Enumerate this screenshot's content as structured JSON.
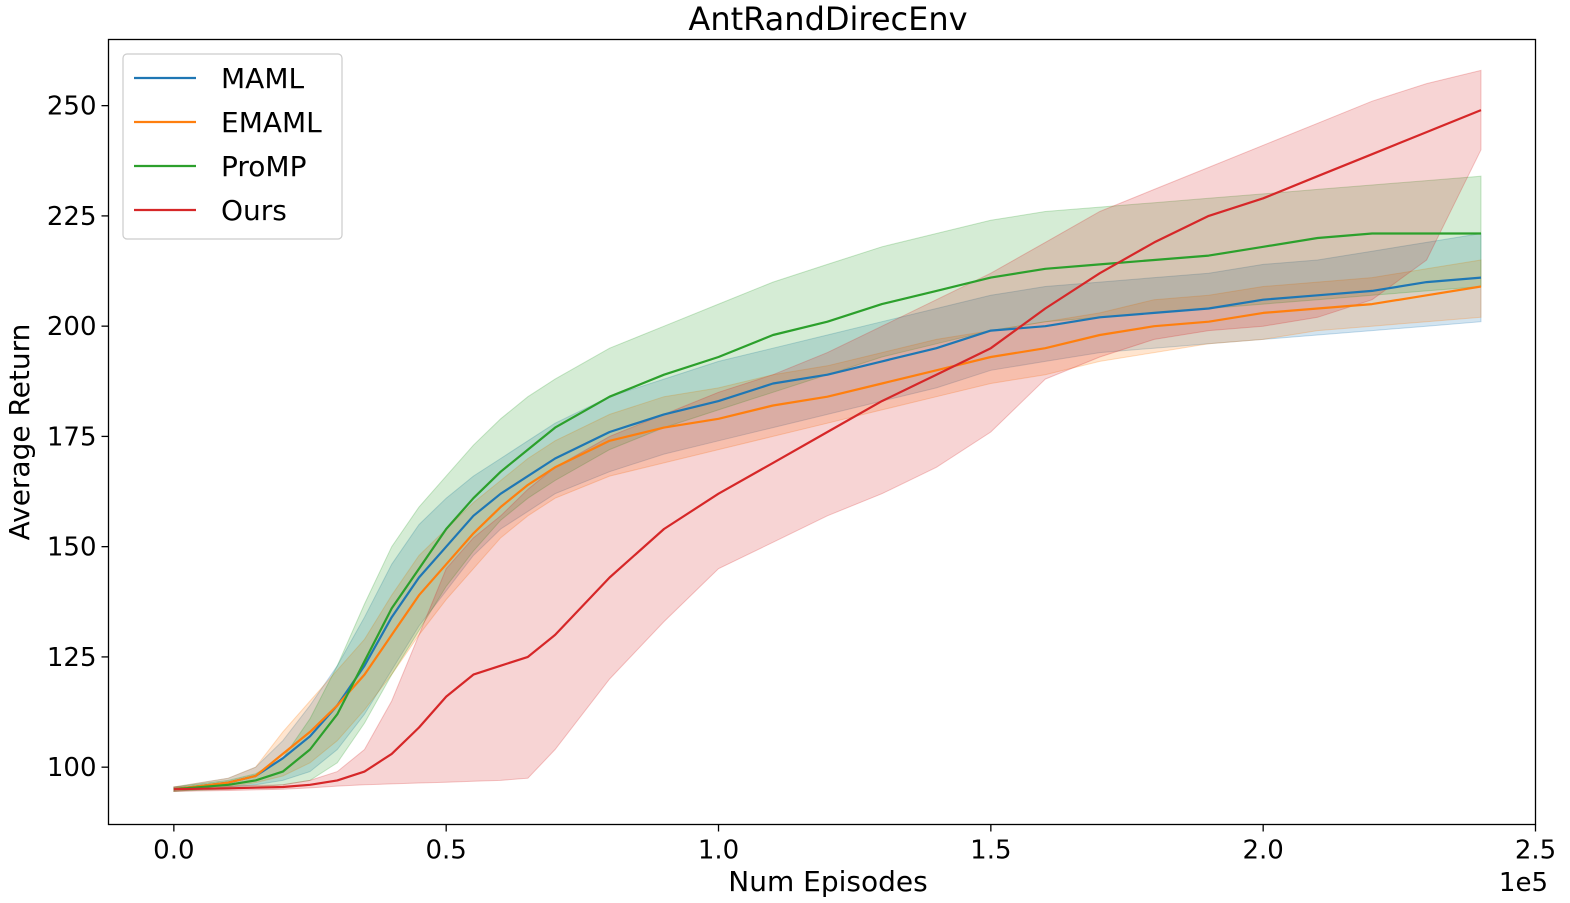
{
  "chart_data": {
    "type": "line",
    "title": "AntRandDirecEnv",
    "xlabel": "Num Episodes",
    "ylabel": "Average Return",
    "x_scale_label": "1e5",
    "xlim": [
      -0.12,
      2.5
    ],
    "ylim": [
      87,
      265
    ],
    "x_ticks": [
      0.0,
      0.5,
      1.0,
      1.5,
      2.0,
      2.5
    ],
    "x_tick_labels": [
      "0.0",
      "0.5",
      "1.0",
      "1.5",
      "2.0",
      "2.5"
    ],
    "y_ticks": [
      100,
      125,
      150,
      175,
      200,
      225,
      250
    ],
    "y_tick_labels": [
      "100",
      "125",
      "150",
      "175",
      "200",
      "225",
      "250"
    ],
    "grid": false,
    "legend_position": "top-left",
    "series": [
      {
        "name": "MAML",
        "color": "#1f77b4",
        "x": [
          0.0,
          0.1,
          0.15,
          0.2,
          0.25,
          0.3,
          0.35,
          0.4,
          0.45,
          0.5,
          0.55,
          0.6,
          0.65,
          0.7,
          0.8,
          0.9,
          1.0,
          1.1,
          1.2,
          1.3,
          1.4,
          1.5,
          1.6,
          1.7,
          1.8,
          1.9,
          2.0,
          2.1,
          2.2,
          2.3,
          2.4
        ],
        "y": [
          95,
          96.5,
          98,
          102,
          107,
          114,
          123,
          134,
          143,
          150,
          157,
          162,
          166,
          170,
          176,
          180,
          183,
          187,
          189,
          192,
          195,
          199,
          200,
          202,
          203,
          204,
          206,
          207,
          208,
          210,
          211
        ],
        "lower": [
          94.5,
          95.5,
          96,
          97,
          99,
          104,
          112,
          122,
          132,
          140,
          148,
          154,
          158,
          162,
          167,
          171,
          174,
          177,
          180,
          183,
          186,
          190,
          192,
          194,
          195,
          196,
          197,
          198,
          199,
          200,
          201
        ],
        "upper": [
          95.5,
          97.5,
          100,
          106,
          114,
          123,
          134,
          146,
          155,
          161,
          166,
          170,
          174,
          178,
          184,
          188,
          192,
          195,
          198,
          201,
          204,
          207,
          209,
          210,
          211,
          212,
          214,
          215,
          217,
          219,
          221
        ]
      },
      {
        "name": "EMAML",
        "color": "#ff7f0e",
        "x": [
          0.0,
          0.1,
          0.15,
          0.2,
          0.25,
          0.3,
          0.35,
          0.4,
          0.45,
          0.5,
          0.55,
          0.6,
          0.65,
          0.7,
          0.8,
          0.9,
          1.0,
          1.1,
          1.2,
          1.3,
          1.4,
          1.5,
          1.6,
          1.7,
          1.8,
          1.9,
          2.0,
          2.1,
          2.2,
          2.3,
          2.4
        ],
        "y": [
          95,
          96.5,
          98,
          103,
          108,
          114,
          121,
          130,
          139,
          146,
          153,
          159,
          164,
          168,
          174,
          177,
          179,
          182,
          184,
          187,
          190,
          193,
          195,
          198,
          200,
          201,
          203,
          204,
          205,
          207,
          209
        ],
        "lower": [
          94.5,
          95.5,
          96.5,
          98,
          101,
          106,
          113,
          121,
          130,
          138,
          145,
          152,
          157,
          161,
          166,
          169,
          172,
          175,
          178,
          181,
          184,
          187,
          189,
          192,
          194,
          196,
          197,
          199,
          200,
          201,
          202
        ],
        "upper": [
          95.5,
          97.5,
          100,
          108,
          115,
          122,
          129,
          139,
          148,
          154,
          160,
          165,
          170,
          174,
          180,
          184,
          186,
          189,
          191,
          194,
          197,
          199,
          201,
          203,
          206,
          207,
          209,
          210,
          211,
          213,
          215
        ]
      },
      {
        "name": "ProMP",
        "color": "#2ca02c",
        "x": [
          0.0,
          0.1,
          0.15,
          0.2,
          0.25,
          0.3,
          0.35,
          0.4,
          0.45,
          0.5,
          0.55,
          0.6,
          0.65,
          0.7,
          0.8,
          0.9,
          1.0,
          1.1,
          1.2,
          1.3,
          1.4,
          1.5,
          1.6,
          1.7,
          1.8,
          1.9,
          2.0,
          2.1,
          2.2,
          2.3,
          2.4
        ],
        "y": [
          95,
          96,
          97,
          99,
          104,
          112,
          124,
          136,
          145,
          154,
          161,
          167,
          172,
          177,
          184,
          189,
          193,
          198,
          201,
          205,
          208,
          211,
          213,
          214,
          215,
          216,
          218,
          220,
          221,
          221,
          221
        ],
        "lower": [
          94.5,
          95,
          95.5,
          96,
          97,
          101,
          110,
          121,
          131,
          141,
          149,
          156,
          161,
          165,
          172,
          177,
          181,
          185,
          189,
          193,
          196,
          199,
          201,
          202,
          203,
          204,
          205,
          206,
          207,
          208,
          209
        ],
        "upper": [
          95.5,
          97,
          98.5,
          102,
          111,
          123,
          137,
          150,
          159,
          166,
          173,
          179,
          184,
          188,
          195,
          200,
          205,
          210,
          214,
          218,
          221,
          224,
          226,
          227,
          228,
          229,
          230,
          231,
          232,
          233,
          234
        ]
      },
      {
        "name": "Ours",
        "color": "#d62728",
        "x": [
          0.0,
          0.1,
          0.2,
          0.25,
          0.3,
          0.35,
          0.4,
          0.45,
          0.5,
          0.55,
          0.6,
          0.65,
          0.7,
          0.8,
          0.9,
          1.0,
          1.1,
          1.2,
          1.3,
          1.4,
          1.5,
          1.6,
          1.7,
          1.8,
          1.9,
          2.0,
          2.1,
          2.2,
          2.3,
          2.4
        ],
        "y": [
          95,
          95.2,
          95.5,
          96,
          97,
          99,
          103,
          109,
          116,
          121,
          123,
          125,
          130,
          143,
          154,
          162,
          169,
          176,
          183,
          189,
          195,
          204,
          212,
          219,
          225,
          229,
          234,
          239,
          244,
          249
        ],
        "lower": [
          94.5,
          94.7,
          95,
          95.3,
          95.7,
          96,
          96.2,
          96.4,
          96.6,
          96.8,
          97,
          97.5,
          104,
          120,
          133,
          145,
          151,
          157,
          162,
          168,
          176,
          188,
          193,
          197,
          199,
          200,
          202,
          206,
          215,
          240
        ],
        "upper": [
          95.5,
          95.7,
          96,
          97,
          99,
          104,
          115,
          130,
          145,
          152,
          157,
          163,
          168,
          175,
          180,
          185,
          189,
          194,
          200,
          206,
          212,
          219,
          226,
          231,
          236,
          241,
          246,
          251,
          255,
          258
        ]
      }
    ]
  }
}
